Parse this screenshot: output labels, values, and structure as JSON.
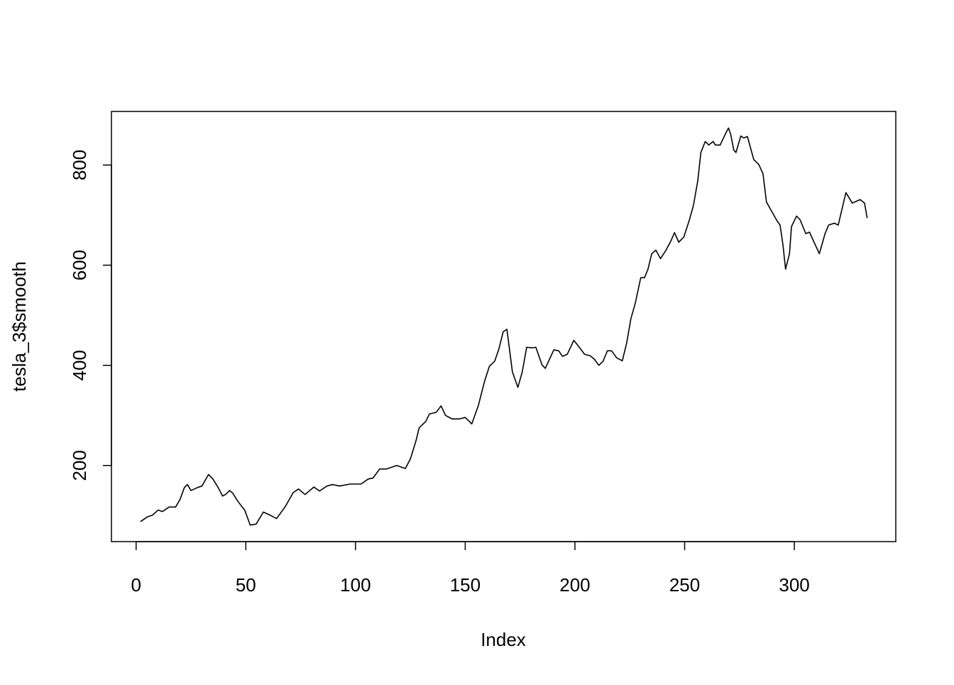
{
  "chart_data": {
    "type": "line",
    "xlabel": "Index",
    "ylabel": "tesla_3$smooth",
    "x": [
      2,
      5,
      7.5,
      10,
      12,
      15,
      18,
      20,
      22,
      23.4,
      25,
      28,
      30,
      33,
      35,
      37.4,
      39.4,
      40.7,
      42.6,
      44,
      46,
      48,
      49.5,
      52,
      54.7,
      58,
      61,
      64,
      68,
      71.6,
      74,
      77,
      81,
      83.6,
      87,
      89.5,
      92.7,
      97.6,
      102.5,
      105.8,
      108,
      111,
      114,
      118.8,
      122.7,
      125,
      127.6,
      129,
      132,
      133.7,
      136.7,
      139,
      141,
      144,
      147.4,
      150,
      153,
      156,
      158.8,
      161,
      163.4,
      165.3,
      167.3,
      169,
      171.5,
      174,
      176,
      178,
      180.3,
      182.2,
      185,
      186.5,
      188.7,
      190.4,
      192.6,
      194.3,
      196.5,
      199.5,
      202,
      204.4,
      207,
      208.9,
      210.9,
      212.8,
      214.8,
      216.7,
      219,
      221.6,
      223.6,
      225.5,
      227.5,
      230,
      231.7,
      233.3,
      235,
      236.9,
      239,
      241.5,
      243.7,
      245.4,
      247.3,
      249.6,
      252,
      254,
      256,
      257.4,
      259.4,
      261,
      263,
      264,
      266.2,
      268.8,
      270,
      271,
      272.4,
      273.4,
      275.6,
      277,
      278.6,
      281.5,
      283.8,
      285.7,
      287.3,
      290,
      292.2,
      293.5,
      294.8,
      296,
      297.8,
      298.7,
      301,
      302.6,
      305.2,
      306.9,
      309.5,
      311.4,
      314,
      315.6,
      318.3,
      320,
      321.5,
      323.5,
      326.4,
      330,
      332,
      333.2
    ],
    "values": [
      88,
      97,
      101,
      111,
      108,
      117,
      117,
      132,
      156,
      162,
      150,
      156,
      159,
      182,
      173,
      156,
      139,
      142,
      150,
      145,
      131,
      119,
      111,
      81,
      83,
      107,
      101,
      94,
      118,
      146,
      153,
      142,
      157,
      149,
      159,
      162,
      159,
      163,
      163,
      173,
      175,
      193,
      193,
      200,
      194,
      213,
      250,
      275,
      288,
      303,
      306,
      319,
      300,
      293,
      293,
      296,
      283,
      320,
      368,
      398,
      408,
      432,
      467,
      472,
      387,
      356,
      387,
      436,
      435,
      436,
      401,
      394,
      415,
      431,
      429,
      418,
      422,
      450,
      436,
      422,
      419,
      412,
      400,
      408,
      429,
      429,
      415,
      409,
      445,
      493,
      524,
      575,
      575,
      592,
      623,
      630,
      613,
      630,
      648,
      665,
      646,
      656,
      688,
      719,
      769,
      825,
      847,
      840,
      847,
      840,
      840,
      864,
      874,
      861,
      830,
      825,
      858,
      854,
      857,
      811,
      801,
      783,
      726,
      705,
      688,
      680,
      641,
      592,
      623,
      677,
      698,
      691,
      663,
      666,
      641,
      623,
      663,
      680,
      684,
      680,
      708,
      745,
      724,
      731,
      724,
      694
    ],
    "color": "#000000",
    "xlim": [
      -11.24,
      346.24
    ],
    "ylim": [
      48,
      907
    ],
    "xticks": [
      0,
      50,
      100,
      150,
      200,
      250,
      300
    ],
    "yticks": [
      200,
      400,
      600,
      800
    ]
  }
}
